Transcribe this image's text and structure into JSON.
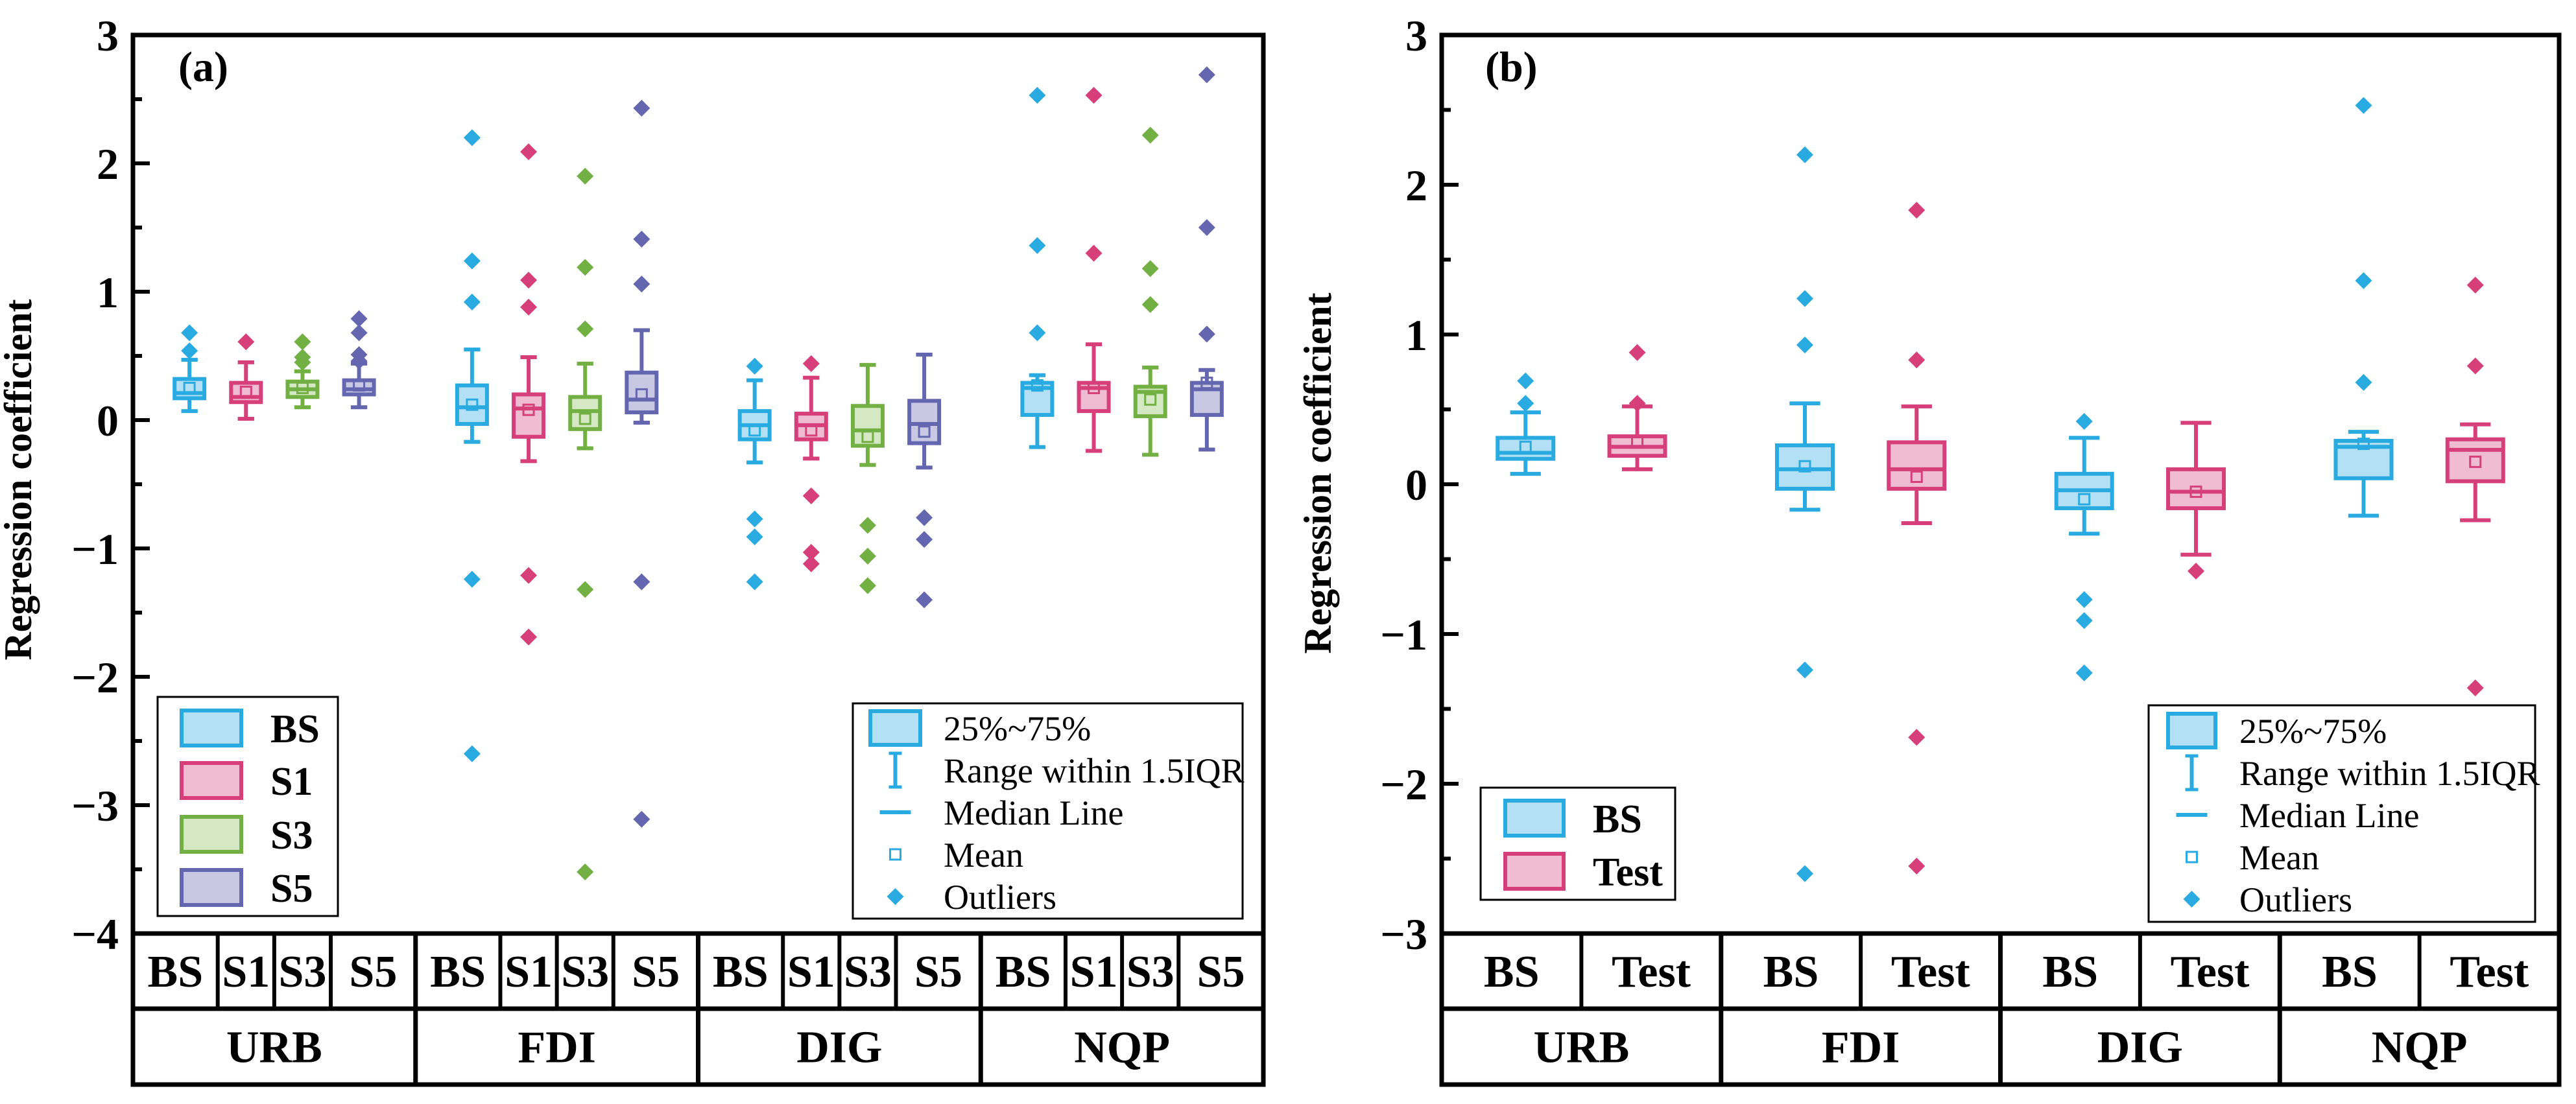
{
  "colors": {
    "BS": {
      "stroke": "#29abe2",
      "fill": "#b3e0f5"
    },
    "S1": {
      "stroke": "#d63f7a",
      "fill": "#f0bcd2"
    },
    "S3": {
      "stroke": "#72b043",
      "fill": "#d5e8c4"
    },
    "S5": {
      "stroke": "#6566b0",
      "fill": "#c8c8e3"
    },
    "Test": {
      "stroke": "#d63f7a",
      "fill": "#f0bcd2"
    }
  },
  "stat_legend": [
    "25%~75%",
    "Range within 1.5IQR",
    "Median Line",
    "Mean",
    "Outliers"
  ],
  "chart_data": [
    {
      "type": "box",
      "panel_label": "(a)",
      "ylabel": "Regression coefficient",
      "ylim": [
        -4,
        3
      ],
      "yticks": [
        3,
        2,
        1,
        0,
        -1,
        -2,
        -3,
        -4
      ],
      "tick_labels": [
        "3",
        "2",
        "1",
        "0",
        "−1",
        "−2",
        "−3",
        "−4"
      ],
      "groups": [
        "URB",
        "FDI",
        "DIG",
        "NQP"
      ],
      "series": [
        "BS",
        "S1",
        "S3",
        "S5"
      ],
      "legend": [
        "BS",
        "S1",
        "S3",
        "S5"
      ],
      "boxes": [
        [
          {
            "q1": 0.17,
            "median": 0.21,
            "q3": 0.32,
            "mean": 0.25,
            "low": 0.07,
            "high": 0.47,
            "outliers": [
              0.68,
              0.54
            ]
          },
          {
            "q1": 0.14,
            "median": 0.18,
            "q3": 0.29,
            "mean": 0.22,
            "low": 0.01,
            "high": 0.45,
            "outliers": [
              0.61
            ]
          },
          {
            "q1": 0.18,
            "median": 0.24,
            "q3": 0.3,
            "mean": 0.25,
            "low": 0.1,
            "high": 0.38,
            "outliers": [
              0.61,
              0.49,
              0.45
            ]
          },
          {
            "q1": 0.2,
            "median": 0.24,
            "q3": 0.31,
            "mean": 0.27,
            "low": 0.1,
            "high": 0.44,
            "outliers": [
              0.79,
              0.68,
              0.51,
              0.46
            ]
          }
        ],
        [
          {
            "q1": -0.03,
            "median": 0.1,
            "q3": 0.27,
            "mean": 0.12,
            "low": -0.17,
            "high": 0.55,
            "outliers": [
              2.2,
              1.24,
              0.92,
              -1.24,
              -2.6
            ]
          },
          {
            "q1": -0.13,
            "median": 0.09,
            "q3": 0.2,
            "mean": 0.08,
            "low": -0.32,
            "high": 0.49,
            "outliers": [
              2.09,
              1.09,
              0.88,
              -1.21,
              -1.69
            ]
          },
          {
            "q1": -0.07,
            "median": 0.07,
            "q3": 0.18,
            "mean": 0.01,
            "low": -0.22,
            "high": 0.44,
            "outliers": [
              1.9,
              1.19,
              0.71,
              -1.32,
              -3.52
            ]
          },
          {
            "q1": 0.06,
            "median": 0.16,
            "q3": 0.37,
            "mean": 0.2,
            "low": -0.02,
            "high": 0.7,
            "outliers": [
              2.43,
              1.41,
              1.06,
              -1.26,
              -3.11
            ]
          }
        ],
        [
          {
            "q1": -0.15,
            "median": -0.04,
            "q3": 0.07,
            "mean": -0.08,
            "low": -0.33,
            "high": 0.31,
            "outliers": [
              0.42,
              -0.77,
              -0.91,
              -1.26
            ]
          },
          {
            "q1": -0.15,
            "median": -0.04,
            "q3": 0.05,
            "mean": -0.08,
            "low": -0.3,
            "high": 0.33,
            "outliers": [
              0.44,
              -0.59,
              -1.03,
              -1.12
            ]
          },
          {
            "q1": -0.2,
            "median": -0.08,
            "q3": 0.11,
            "mean": -0.13,
            "low": -0.35,
            "high": 0.43,
            "outliers": [
              -0.82,
              -1.06,
              -1.29
            ]
          },
          {
            "q1": -0.18,
            "median": -0.03,
            "q3": 0.15,
            "mean": -0.09,
            "low": -0.37,
            "high": 0.51,
            "outliers": [
              -0.76,
              -0.93,
              -1.4
            ]
          }
        ],
        [
          {
            "q1": 0.04,
            "median": 0.25,
            "q3": 0.29,
            "mean": 0.27,
            "low": -0.21,
            "high": 0.35,
            "outliers": [
              2.53,
              1.36,
              0.68
            ]
          },
          {
            "q1": 0.07,
            "median": 0.25,
            "q3": 0.29,
            "mean": 0.25,
            "low": -0.24,
            "high": 0.59,
            "outliers": [
              2.53,
              1.3
            ]
          },
          {
            "q1": 0.03,
            "median": 0.22,
            "q3": 0.26,
            "mean": 0.16,
            "low": -0.27,
            "high": 0.41,
            "outliers": [
              2.22,
              1.18,
              0.9
            ]
          },
          {
            "q1": 0.04,
            "median": 0.24,
            "q3": 0.29,
            "mean": 0.29,
            "low": -0.23,
            "high": 0.39,
            "outliers": [
              2.69,
              1.5,
              0.67
            ]
          }
        ]
      ]
    },
    {
      "type": "box",
      "panel_label": "(b)",
      "ylabel": "Regression coefficient",
      "ylim": [
        -3,
        3
      ],
      "yticks": [
        3,
        2,
        1,
        0,
        -1,
        -2,
        -3
      ],
      "tick_labels": [
        "3",
        "2",
        "1",
        "0",
        "−1",
        "−2",
        "−3"
      ],
      "groups": [
        "URB",
        "FDI",
        "DIG",
        "NQP"
      ],
      "series": [
        "BS",
        "Test"
      ],
      "legend": [
        "BS",
        "Test"
      ],
      "boxes": [
        [
          {
            "q1": 0.17,
            "median": 0.21,
            "q3": 0.31,
            "mean": 0.25,
            "low": 0.07,
            "high": 0.48,
            "outliers": [
              0.69,
              0.54
            ]
          },
          {
            "q1": 0.19,
            "median": 0.25,
            "q3": 0.32,
            "mean": 0.28,
            "low": 0.1,
            "high": 0.52,
            "outliers": [
              0.88,
              0.54
            ]
          }
        ],
        [
          {
            "q1": -0.03,
            "median": 0.1,
            "q3": 0.26,
            "mean": 0.12,
            "low": -0.17,
            "high": 0.54,
            "outliers": [
              2.2,
              1.24,
              0.93,
              -1.24,
              -2.6
            ]
          },
          {
            "q1": -0.03,
            "median": 0.1,
            "q3": 0.28,
            "mean": 0.05,
            "low": -0.26,
            "high": 0.52,
            "outliers": [
              1.83,
              0.83,
              -1.69,
              -2.55
            ]
          }
        ],
        [
          {
            "q1": -0.16,
            "median": -0.04,
            "q3": 0.07,
            "mean": -0.1,
            "low": -0.33,
            "high": 0.31,
            "outliers": [
              0.42,
              -0.77,
              -0.91,
              -1.26
            ]
          },
          {
            "q1": -0.16,
            "median": -0.05,
            "q3": 0.1,
            "mean": -0.05,
            "low": -0.47,
            "high": 0.41,
            "outliers": [
              -0.58
            ]
          }
        ],
        [
          {
            "q1": 0.04,
            "median": 0.25,
            "q3": 0.29,
            "mean": 0.27,
            "low": -0.21,
            "high": 0.35,
            "outliers": [
              2.53,
              1.36,
              0.68
            ]
          },
          {
            "q1": 0.02,
            "median": 0.23,
            "q3": 0.3,
            "mean": 0.15,
            "low": -0.24,
            "high": 0.4,
            "outliers": [
              1.33,
              0.79,
              -1.36
            ]
          }
        ]
      ]
    }
  ]
}
